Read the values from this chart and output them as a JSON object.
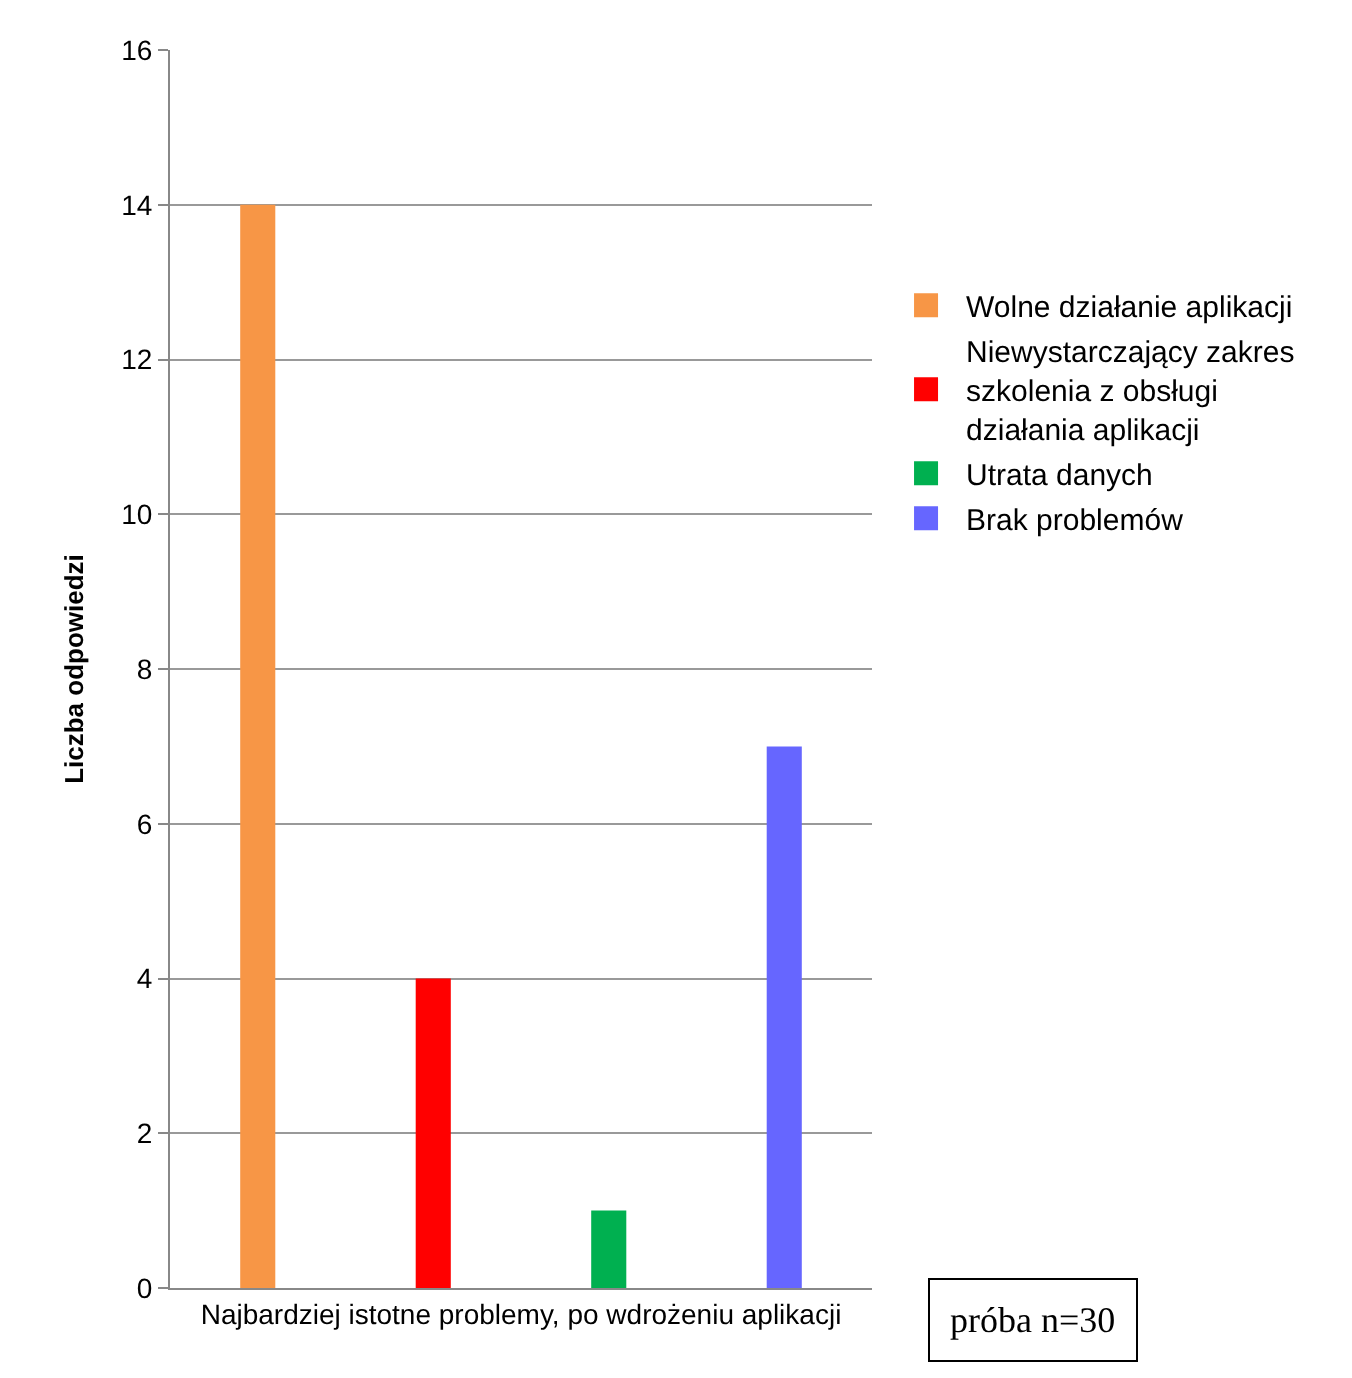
{
  "chart_data": {
    "type": "bar",
    "ylabel": "Liczba odpowiedzi",
    "categories": [
      "Najbardziej istotne problemy, po wdrożeniu aplikacji"
    ],
    "series": [
      {
        "name": "Wolne działanie aplikacji",
        "color": "#f79646",
        "values": [
          14
        ]
      },
      {
        "name": "Niewystarczający zakres szkolenia z obsługi działania aplikacji",
        "color": "#ff0000",
        "values": [
          4
        ]
      },
      {
        "name": "Utrata danych",
        "color": "#00b050",
        "values": [
          1
        ]
      },
      {
        "name": "Brak problemów",
        "color": "#6666ff",
        "values": [
          7
        ]
      }
    ],
    "ylim": [
      0,
      16
    ],
    "yticks": [
      0,
      2,
      4,
      6,
      8,
      10,
      12,
      14,
      16
    ],
    "grid": "y",
    "legend": "right",
    "annotations": [
      "próba n=30"
    ]
  }
}
